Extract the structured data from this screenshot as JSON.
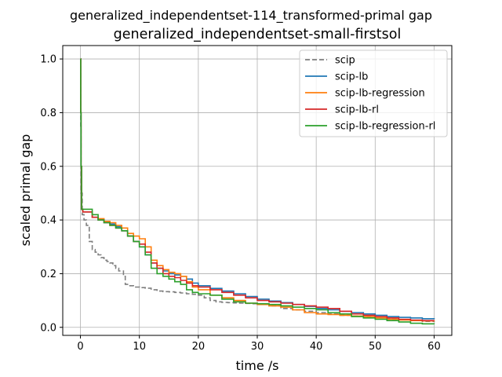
{
  "chart_data": {
    "type": "line",
    "suptitle": "generalized_independentset-114_transformed-primal gap",
    "title": "generalized_independentset-small-firstsol",
    "xlabel": "time /s",
    "ylabel": "scaled primal gap",
    "xlim": [
      -3,
      63
    ],
    "ylim": [
      -0.03,
      1.05
    ],
    "xticks": [
      0,
      10,
      20,
      30,
      40,
      50,
      60
    ],
    "yticks": [
      0.0,
      0.2,
      0.4,
      0.6,
      0.8,
      1.0
    ],
    "xtick_labels": [
      "0",
      "10",
      "20",
      "30",
      "40",
      "50",
      "60"
    ],
    "ytick_labels": [
      "0.0",
      "0.2",
      "0.4",
      "0.6",
      "0.8",
      "1.0"
    ],
    "grid": true,
    "legend_position": "top-right",
    "series": [
      {
        "name": "scip",
        "color": "#7f7f7f",
        "dashed": true,
        "x": [
          0,
          0.05,
          0.1,
          0.3,
          0.6,
          1.0,
          1.5,
          2.0,
          2.5,
          3.0,
          3.5,
          4.0,
          4.5,
          5.0,
          5.5,
          6.0,
          6.5,
          7.0,
          7.3,
          7.6,
          8.0,
          9.0,
          10.0,
          11.0,
          12.0,
          13.0,
          14.0,
          15.0,
          16.0,
          17.0,
          18.0,
          19.0,
          20.0,
          21.0,
          22.0,
          23.0,
          24.0,
          25.0,
          26.0,
          27.0,
          28.0,
          29.0,
          30.0,
          32.0,
          34.0,
          36.0,
          38.0,
          40.0,
          42.0,
          44.0,
          46.0,
          48.0,
          50.0,
          52.0,
          54.0,
          56.0,
          58.0,
          60.0
        ],
        "y": [
          1.0,
          0.75,
          0.5,
          0.42,
          0.4,
          0.38,
          0.32,
          0.29,
          0.28,
          0.27,
          0.26,
          0.25,
          0.245,
          0.24,
          0.23,
          0.22,
          0.21,
          0.21,
          0.19,
          0.16,
          0.155,
          0.15,
          0.148,
          0.146,
          0.14,
          0.135,
          0.133,
          0.132,
          0.13,
          0.128,
          0.125,
          0.123,
          0.12,
          0.11,
          0.1,
          0.095,
          0.093,
          0.092,
          0.091,
          0.09,
          0.089,
          0.088,
          0.087,
          0.08,
          0.07,
          0.065,
          0.06,
          0.055,
          0.05,
          0.045,
          0.042,
          0.04,
          0.035,
          0.03,
          0.028,
          0.025,
          0.022,
          0.02
        ]
      },
      {
        "name": "scip-lb",
        "color": "#1f77b4",
        "dashed": false,
        "x": [
          0,
          0.05,
          0.1,
          0.2,
          0.4,
          1.0,
          2.0,
          3.0,
          4.0,
          5.0,
          6.0,
          7.0,
          8.0,
          9.0,
          10.0,
          11.0,
          12.0,
          13.0,
          14.0,
          15.0,
          16.0,
          17.0,
          18.0,
          19.0,
          20.0,
          22.0,
          24.0,
          26.0,
          28.0,
          30.0,
          32.0,
          34.0,
          36.0,
          38.0,
          40.0,
          42.0,
          44.0,
          46.0,
          48.0,
          50.0,
          52.0,
          54.0,
          56.0,
          58.0,
          60.0
        ],
        "y": [
          1.0,
          0.8,
          0.6,
          0.44,
          0.43,
          0.43,
          0.41,
          0.4,
          0.39,
          0.385,
          0.375,
          0.36,
          0.34,
          0.32,
          0.3,
          0.27,
          0.24,
          0.22,
          0.21,
          0.2,
          0.195,
          0.19,
          0.18,
          0.165,
          0.155,
          0.145,
          0.135,
          0.125,
          0.115,
          0.105,
          0.098,
          0.092,
          0.085,
          0.078,
          0.07,
          0.065,
          0.06,
          0.055,
          0.05,
          0.045,
          0.04,
          0.037,
          0.035,
          0.032,
          0.03
        ]
      },
      {
        "name": "scip-lb-regression",
        "color": "#ff7f0e",
        "dashed": false,
        "x": [
          0,
          0.05,
          0.1,
          0.2,
          0.4,
          1.0,
          2.0,
          3.0,
          4.0,
          5.0,
          6.0,
          7.0,
          8.0,
          9.0,
          10.0,
          11.0,
          12.0,
          13.0,
          14.0,
          15.0,
          16.0,
          17.0,
          18.0,
          19.0,
          20.0,
          22.0,
          24.0,
          26.0,
          28.0,
          30.0,
          32.0,
          34.0,
          36.0,
          38.0,
          40.0,
          42.0,
          44.0,
          46.0,
          48.0,
          50.0,
          52.0,
          54.0,
          56.0,
          58.0,
          60.0
        ],
        "y": [
          1.0,
          0.8,
          0.6,
          0.44,
          0.43,
          0.43,
          0.41,
          0.405,
          0.395,
          0.39,
          0.38,
          0.37,
          0.35,
          0.34,
          0.33,
          0.3,
          0.25,
          0.23,
          0.215,
          0.205,
          0.2,
          0.19,
          0.17,
          0.15,
          0.14,
          0.12,
          0.11,
          0.1,
          0.09,
          0.085,
          0.08,
          0.075,
          0.065,
          0.055,
          0.05,
          0.048,
          0.045,
          0.042,
          0.04,
          0.035,
          0.03,
          0.027,
          0.025,
          0.024,
          0.022
        ]
      },
      {
        "name": "scip-lb-rl",
        "color": "#d62728",
        "dashed": false,
        "x": [
          0,
          0.05,
          0.1,
          0.2,
          0.4,
          1.0,
          2.0,
          3.0,
          4.0,
          5.0,
          6.0,
          7.0,
          8.0,
          9.0,
          10.0,
          11.0,
          12.0,
          13.0,
          14.0,
          15.0,
          16.0,
          17.0,
          18.0,
          19.0,
          20.0,
          22.0,
          24.0,
          26.0,
          28.0,
          30.0,
          32.0,
          34.0,
          36.0,
          38.0,
          40.0,
          42.0,
          44.0,
          46.0,
          48.0,
          50.0,
          52.0,
          54.0,
          56.0,
          58.0,
          60.0
        ],
        "y": [
          1.0,
          0.8,
          0.6,
          0.44,
          0.43,
          0.43,
          0.41,
          0.4,
          0.39,
          0.38,
          0.37,
          0.36,
          0.34,
          0.32,
          0.31,
          0.28,
          0.24,
          0.22,
          0.2,
          0.19,
          0.185,
          0.175,
          0.165,
          0.155,
          0.15,
          0.14,
          0.13,
          0.12,
          0.11,
          0.1,
          0.095,
          0.09,
          0.085,
          0.08,
          0.075,
          0.07,
          0.06,
          0.05,
          0.045,
          0.04,
          0.035,
          0.03,
          0.027,
          0.025,
          0.025
        ]
      },
      {
        "name": "scip-lb-regression-rl",
        "color": "#2ca02c",
        "dashed": false,
        "x": [
          0,
          0.05,
          0.1,
          0.2,
          0.4,
          1.0,
          2.0,
          3.0,
          4.0,
          5.0,
          6.0,
          7.0,
          8.0,
          9.0,
          10.0,
          11.0,
          12.0,
          13.0,
          14.0,
          15.0,
          16.0,
          17.0,
          18.0,
          19.0,
          20.0,
          22.0,
          24.0,
          26.0,
          28.0,
          30.0,
          32.0,
          34.0,
          36.0,
          38.0,
          40.0,
          42.0,
          44.0,
          46.0,
          48.0,
          50.0,
          52.0,
          54.0,
          56.0,
          58.0,
          60.0
        ],
        "y": [
          1.0,
          0.8,
          0.6,
          0.44,
          0.44,
          0.44,
          0.42,
          0.4,
          0.39,
          0.38,
          0.37,
          0.36,
          0.34,
          0.32,
          0.3,
          0.27,
          0.22,
          0.2,
          0.19,
          0.18,
          0.17,
          0.16,
          0.14,
          0.13,
          0.125,
          0.12,
          0.105,
          0.095,
          0.09,
          0.088,
          0.085,
          0.08,
          0.075,
          0.07,
          0.065,
          0.055,
          0.05,
          0.04,
          0.035,
          0.03,
          0.025,
          0.02,
          0.015,
          0.013,
          0.012
        ]
      }
    ]
  }
}
